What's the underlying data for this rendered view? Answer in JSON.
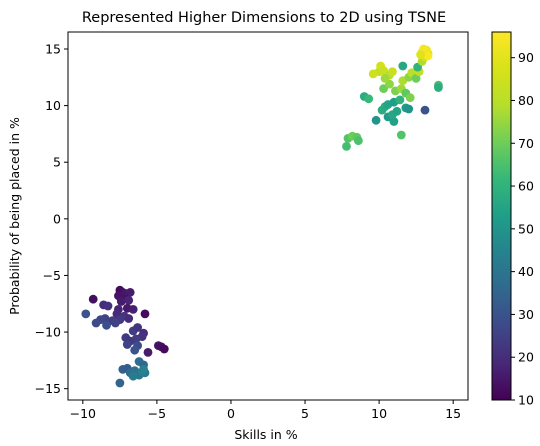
{
  "chart_data": {
    "type": "scatter",
    "title": "Represented Higher Dimensions to 2D using TSNE",
    "xlabel": "Skills in %",
    "ylabel": "Probability of being placed in %",
    "xlim": [
      -11,
      16
    ],
    "ylim": [
      -16,
      16.5
    ],
    "xticks": [
      -10,
      -5,
      0,
      5,
      10,
      15
    ],
    "xtick_labels": [
      "−10",
      "−5",
      "0",
      "5",
      "10",
      "15"
    ],
    "yticks": [
      -15,
      -10,
      -5,
      0,
      5,
      10,
      15
    ],
    "ytick_labels": [
      "−15",
      "−10",
      "−5",
      "0",
      "5",
      "10",
      "15"
    ],
    "grid": false,
    "colormap": "viridis",
    "colorbar": {
      "range": [
        10,
        96
      ],
      "ticks": [
        10,
        20,
        30,
        40,
        50,
        60,
        70,
        80,
        90
      ],
      "tick_labels": [
        "10",
        "20",
        "30",
        "40",
        "50",
        "60",
        "70",
        "80",
        "90"
      ]
    },
    "points": [
      {
        "x": -7.5,
        "y": -6.3,
        "c": 12
      },
      {
        "x": -7.3,
        "y": -6.5,
        "c": 13
      },
      {
        "x": -7.6,
        "y": -6.8,
        "c": 14
      },
      {
        "x": -7.1,
        "y": -6.6,
        "c": 15
      },
      {
        "x": -6.8,
        "y": -6.5,
        "c": 16
      },
      {
        "x": -7.2,
        "y": -7.0,
        "c": 14
      },
      {
        "x": -7.4,
        "y": -7.3,
        "c": 16
      },
      {
        "x": -6.9,
        "y": -7.2,
        "c": 18
      },
      {
        "x": -9.3,
        "y": -7.1,
        "c": 13
      },
      {
        "x": -5.8,
        "y": -8.4,
        "c": 12
      },
      {
        "x": -8.6,
        "y": -7.6,
        "c": 20
      },
      {
        "x": -8.3,
        "y": -7.7,
        "c": 21
      },
      {
        "x": -7.6,
        "y": -8.0,
        "c": 18
      },
      {
        "x": -7.0,
        "y": -7.9,
        "c": 15
      },
      {
        "x": -6.6,
        "y": -8.0,
        "c": 17
      },
      {
        "x": -7.7,
        "y": -8.4,
        "c": 19
      },
      {
        "x": -7.2,
        "y": -8.6,
        "c": 22
      },
      {
        "x": -6.9,
        "y": -8.8,
        "c": 20
      },
      {
        "x": -7.5,
        "y": -8.9,
        "c": 23
      },
      {
        "x": -8.0,
        "y": -9.0,
        "c": 24
      },
      {
        "x": -8.5,
        "y": -8.8,
        "c": 26
      },
      {
        "x": -8.8,
        "y": -8.9,
        "c": 27
      },
      {
        "x": -9.1,
        "y": -9.2,
        "c": 28
      },
      {
        "x": -8.4,
        "y": -9.4,
        "c": 29
      },
      {
        "x": -9.8,
        "y": -8.4,
        "c": 30
      },
      {
        "x": -7.8,
        "y": -9.2,
        "c": 25
      },
      {
        "x": -6.6,
        "y": -9.9,
        "c": 24
      },
      {
        "x": -6.3,
        "y": -9.6,
        "c": 22
      },
      {
        "x": -5.9,
        "y": -10.1,
        "c": 20
      },
      {
        "x": -6.0,
        "y": -10.4,
        "c": 21
      },
      {
        "x": -7.1,
        "y": -10.5,
        "c": 23
      },
      {
        "x": -6.8,
        "y": -10.8,
        "c": 22
      },
      {
        "x": -6.4,
        "y": -10.6,
        "c": 24
      },
      {
        "x": -7.0,
        "y": -11.1,
        "c": 26
      },
      {
        "x": -6.3,
        "y": -11.2,
        "c": 28
      },
      {
        "x": -6.5,
        "y": -11.6,
        "c": 30
      },
      {
        "x": -4.9,
        "y": -11.2,
        "c": 14
      },
      {
        "x": -4.7,
        "y": -11.3,
        "c": 13
      },
      {
        "x": -4.5,
        "y": -11.5,
        "c": 12
      },
      {
        "x": -5.6,
        "y": -11.8,
        "c": 16
      },
      {
        "x": -6.2,
        "y": -12.6,
        "c": 38
      },
      {
        "x": -5.9,
        "y": -12.9,
        "c": 36
      },
      {
        "x": -7.3,
        "y": -13.3,
        "c": 34
      },
      {
        "x": -7.0,
        "y": -13.2,
        "c": 33
      },
      {
        "x": -6.8,
        "y": -13.6,
        "c": 37
      },
      {
        "x": -6.5,
        "y": -13.4,
        "c": 39
      },
      {
        "x": -6.2,
        "y": -13.8,
        "c": 40
      },
      {
        "x": -5.8,
        "y": -13.6,
        "c": 41
      },
      {
        "x": -6.6,
        "y": -13.9,
        "c": 42
      },
      {
        "x": -6.0,
        "y": -13.5,
        "c": 43
      },
      {
        "x": -5.9,
        "y": -13.3,
        "c": 44
      },
      {
        "x": -7.5,
        "y": -14.5,
        "c": 35
      },
      {
        "x": 7.8,
        "y": 6.4,
        "c": 64
      },
      {
        "x": 7.9,
        "y": 7.1,
        "c": 66
      },
      {
        "x": 8.2,
        "y": 7.3,
        "c": 70
      },
      {
        "x": 8.5,
        "y": 7.2,
        "c": 68
      },
      {
        "x": 8.6,
        "y": 6.9,
        "c": 65
      },
      {
        "x": 11.5,
        "y": 7.4,
        "c": 66
      },
      {
        "x": 9.8,
        "y": 8.7,
        "c": 50
      },
      {
        "x": 10.6,
        "y": 9.0,
        "c": 52
      },
      {
        "x": 11.0,
        "y": 8.6,
        "c": 54
      },
      {
        "x": 10.9,
        "y": 9.2,
        "c": 56
      },
      {
        "x": 11.2,
        "y": 9.5,
        "c": 55
      },
      {
        "x": 10.2,
        "y": 9.6,
        "c": 58
      },
      {
        "x": 10.4,
        "y": 9.9,
        "c": 57
      },
      {
        "x": 10.6,
        "y": 10.1,
        "c": 55
      },
      {
        "x": 11.0,
        "y": 10.3,
        "c": 53
      },
      {
        "x": 11.4,
        "y": 10.5,
        "c": 60
      },
      {
        "x": 11.8,
        "y": 9.8,
        "c": 52
      },
      {
        "x": 12.0,
        "y": 9.7,
        "c": 50
      },
      {
        "x": 13.1,
        "y": 9.6,
        "c": 30
      },
      {
        "x": 9.0,
        "y": 10.8,
        "c": 58
      },
      {
        "x": 9.3,
        "y": 10.6,
        "c": 62
      },
      {
        "x": 10.3,
        "y": 11.5,
        "c": 70
      },
      {
        "x": 10.7,
        "y": 11.9,
        "c": 74
      },
      {
        "x": 11.1,
        "y": 11.3,
        "c": 72
      },
      {
        "x": 11.5,
        "y": 11.5,
        "c": 76
      },
      {
        "x": 11.8,
        "y": 11.1,
        "c": 68
      },
      {
        "x": 12.1,
        "y": 10.7,
        "c": 72
      },
      {
        "x": 11.6,
        "y": 12.2,
        "c": 78
      },
      {
        "x": 12.0,
        "y": 12.5,
        "c": 74
      },
      {
        "x": 12.2,
        "y": 12.9,
        "c": 80
      },
      {
        "x": 12.5,
        "y": 12.4,
        "c": 70
      },
      {
        "x": 12.7,
        "y": 13.0,
        "c": 82
      },
      {
        "x": 12.6,
        "y": 13.4,
        "c": 60
      },
      {
        "x": 11.6,
        "y": 13.5,
        "c": 56
      },
      {
        "x": 12.9,
        "y": 13.9,
        "c": 78
      },
      {
        "x": 13.1,
        "y": 14.3,
        "c": 86
      },
      {
        "x": 13.3,
        "y": 14.6,
        "c": 88
      },
      {
        "x": 12.9,
        "y": 14.7,
        "c": 90
      },
      {
        "x": 13.2,
        "y": 14.9,
        "c": 92
      },
      {
        "x": 13.0,
        "y": 15.0,
        "c": 94
      },
      {
        "x": 13.3,
        "y": 14.4,
        "c": 95
      },
      {
        "x": 12.8,
        "y": 14.5,
        "c": 89
      },
      {
        "x": 10.0,
        "y": 13.0,
        "c": 82
      },
      {
        "x": 9.6,
        "y": 12.8,
        "c": 85
      },
      {
        "x": 10.1,
        "y": 13.5,
        "c": 86
      },
      {
        "x": 10.3,
        "y": 13.1,
        "c": 84
      },
      {
        "x": 10.7,
        "y": 12.7,
        "c": 80
      },
      {
        "x": 10.9,
        "y": 13.0,
        "c": 83
      },
      {
        "x": 10.4,
        "y": 12.4,
        "c": 76
      },
      {
        "x": 14.0,
        "y": 11.8,
        "c": 64
      },
      {
        "x": 14.0,
        "y": 11.6,
        "c": 58
      }
    ]
  }
}
